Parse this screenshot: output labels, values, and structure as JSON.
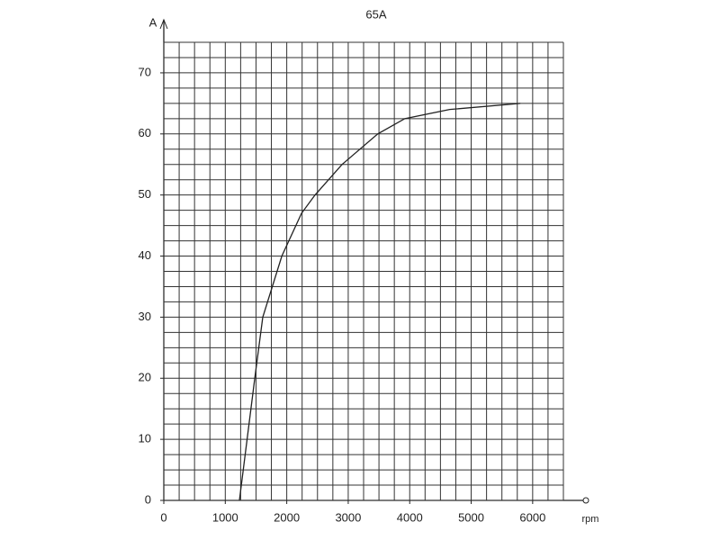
{
  "chart_data": {
    "type": "line",
    "title": "65A",
    "ylabel": "A",
    "xlabel": "rpm",
    "x": [
      1230,
      1480,
      1610,
      1920,
      2240,
      2460,
      2900,
      3480,
      3920,
      4650,
      5800
    ],
    "series": [
      {
        "name": "65A",
        "color": "#222222",
        "values": [
          0,
          20,
          30,
          40,
          47,
          50,
          55,
          60,
          62.5,
          64,
          65
        ]
      }
    ],
    "xlim": [
      0,
      6500
    ],
    "ylim": [
      0,
      75
    ],
    "xticks": [
      0,
      1000,
      2000,
      3000,
      4000,
      5000,
      6000
    ],
    "yticks": [
      0,
      10,
      20,
      30,
      40,
      50,
      60,
      70
    ],
    "grid": true,
    "xgrid": [
      0,
      250,
      500,
      750,
      1000,
      1250,
      1500,
      1750,
      2000,
      2250,
      2500,
      2750,
      3000,
      3250,
      3500,
      3750,
      4000,
      4250,
      4500,
      4750,
      5000,
      5250,
      5500,
      5750,
      6000,
      6250,
      6500
    ],
    "ygrid": [
      0,
      2.5,
      5,
      7.5,
      10,
      12.5,
      15,
      17.5,
      20,
      22.5,
      25,
      27.5,
      30,
      32.5,
      35,
      37.5,
      40,
      42.5,
      45,
      47.5,
      50,
      52.5,
      55,
      57.5,
      60,
      62.5,
      65,
      67.5,
      70,
      72.5,
      75
    ]
  }
}
